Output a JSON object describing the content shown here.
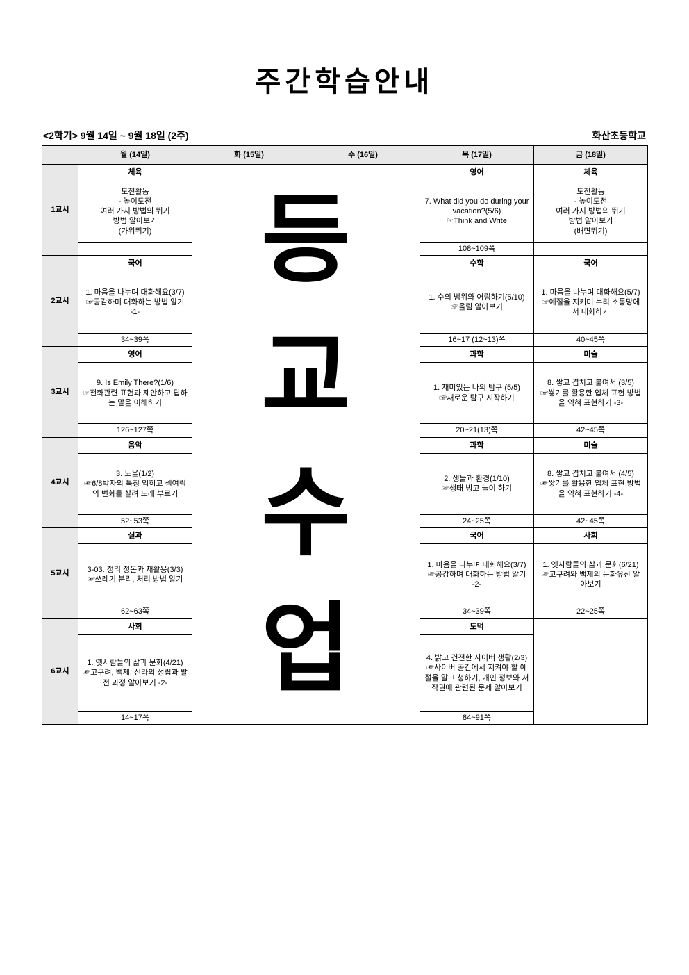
{
  "title": "주간학습안내",
  "meta_left": "<2학기> 9월 14일 ~ 9월 18일 (2주)",
  "meta_right": "화산초등학교",
  "overlay": {
    "c1": "등",
    "c2": "교",
    "c3": "수",
    "c4": "업"
  },
  "header": {
    "period": "",
    "mon": "월 (14일)",
    "tue": "화 (15일)",
    "wed": "수 (16일)",
    "thu": "목 (17일)",
    "fri": "금 (18일)"
  },
  "periods": {
    "p1": {
      "label": "1교시"
    },
    "p2": {
      "label": "2교시"
    },
    "p3": {
      "label": "3교시"
    },
    "p4": {
      "label": "4교시"
    },
    "p5": {
      "label": "5교시"
    },
    "p6": {
      "label": "6교시"
    }
  },
  "cells": {
    "p1_mon_subj": "체육",
    "p1_mon_body": "도전활동\n- 높이도전\n여러 가지 방법의 뛰기\n방법 알아보기\n(가위뛰기)",
    "p1_mon_page": "",
    "p1_thu_subj": "영어",
    "p1_thu_body": "7. What did you do during your vacation?(5/6)\n☞Think and Write",
    "p1_thu_page": "108~109쪽",
    "p1_fri_subj": "체육",
    "p1_fri_body": "도전활동\n- 높이도전\n여러 가지 방법의 뛰기\n방법 알아보기\n(배면뛰기)",
    "p1_fri_page": "",
    "p2_mon_subj": "국어",
    "p2_mon_body": "1. 마음을 나누며 대화해요(3/7)\n☞공감하며 대화하는 방법 알기 -1-",
    "p2_mon_page": "34~39쪽",
    "p2_thu_subj": "수학",
    "p2_thu_body": "1. 수의 범위와 어림하기(5/10)\n☞올림 알아보기",
    "p2_thu_page": "16~17 (12~13)쪽",
    "p2_fri_subj": "국어",
    "p2_fri_body": "1. 마음을 나누며 대화해요(5/7)\n☞예절을 지키며 누리 소통망에서 대화하기",
    "p2_fri_page": "40~45쪽",
    "p3_mon_subj": "영어",
    "p3_mon_body": "9. Is Emily There?(1/6)\n☞전화관련 표현과 제안하고 답하는 말을 이해하기",
    "p3_mon_page": "126~127쪽",
    "p3_thu_subj": "과학",
    "p3_thu_body": "1. 재미있는 나의 탐구 (5/5)\n☞새로운 탐구 시작하기",
    "p3_thu_page": "20~21(13)쪽",
    "p3_fri_subj": "미술",
    "p3_fri_body": "8. 쌓고 겹치고 붙여서 (3/5)\n☞쌓기를 활용한 입체 표현 방법을 익혀 표현하기 -3-",
    "p3_fri_page": "42~45쪽",
    "p4_mon_subj": "음악",
    "p4_mon_body": "3. 노을(1/2)\n☞6/8박자의 특징 익히고 셈여림의 변화를 살려 노래 부르기",
    "p4_mon_page": "52~53쪽",
    "p4_thu_subj": "과학",
    "p4_thu_body": "2. 생물과 환경(1/10)\n☞생태 빙고 놀이 하기",
    "p4_thu_page": "24~25쪽",
    "p4_fri_subj": "미술",
    "p4_fri_body": "8. 쌓고 겹치고 붙여서 (4/5)\n☞쌓기를 활용한 입체 표현 방법을 익혀 표현하기 -4-",
    "p4_fri_page": "42~45쪽",
    "p5_mon_subj": "실과",
    "p5_mon_body": "3-03. 정리 정돈과 재활용(3/3)\n☞쓰레기 분리, 처리 방법 알기",
    "p5_mon_page": "62~63쪽",
    "p5_thu_subj": "국어",
    "p5_thu_body": "1. 마음을 나누며 대화해요(3/7)\n☞공감하며 대화하는 방법 알기 -2-",
    "p5_thu_page": "34~39쪽",
    "p5_fri_subj": "사회",
    "p5_fri_body": "1. 옛사람들의 삶과 문화(6/21)\n☞고구려와 백제의 문화유산 알아보기",
    "p5_fri_page": "22~25쪽",
    "p6_mon_subj": "사회",
    "p6_mon_body": "1. 옛사람들의 삶과 문화(4/21)\n☞고구려, 백제, 신라의 성립과 발전 과정 알아보기 -2-",
    "p6_mon_page": "14~17쪽",
    "p6_thu_subj": "도덕",
    "p6_thu_body": "4. 밝고 건전한 사이버 생활(2/3)\n☞사이버 공간에서 지켜야 할 예절을 알고 청하기, 개인 정보와 저작권에 관련된 문제 알아보기",
    "p6_thu_page": "84~91쪽",
    "p6_fri_subj": "",
    "p6_fri_body": "",
    "p6_fri_page": ""
  }
}
